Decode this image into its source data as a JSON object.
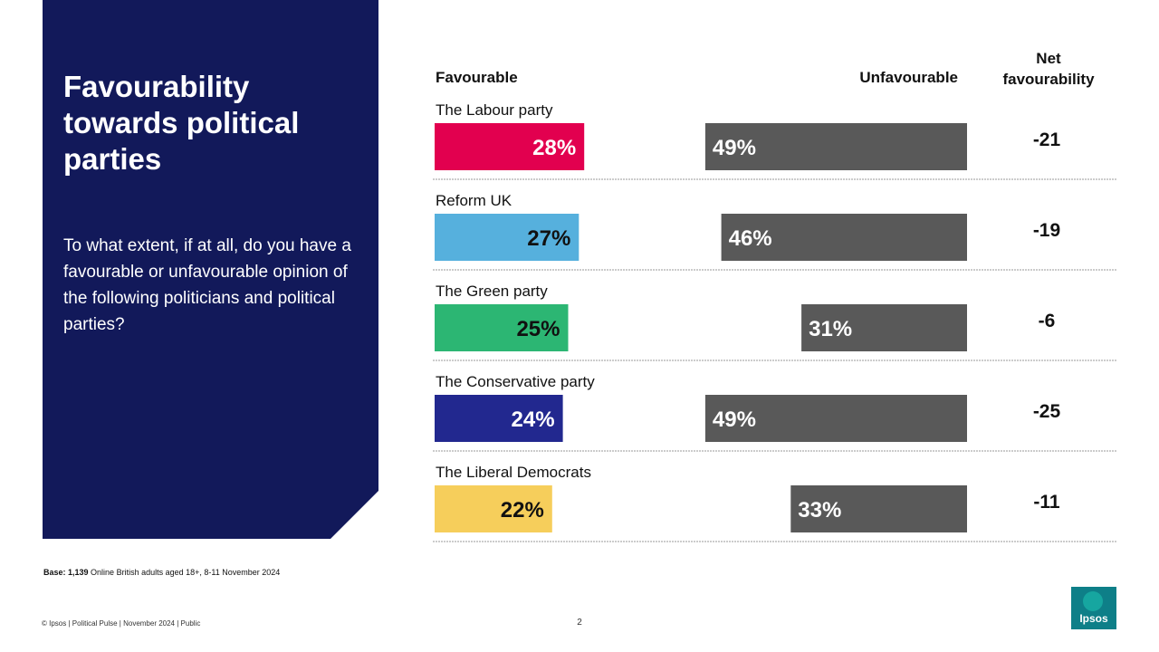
{
  "panel": {
    "title": "Favourability towards political parties",
    "question": "To what extent, if at all, do you have a favourable or unfavourable opinion of the following politicians and political parties?"
  },
  "headers": {
    "favourable": "Favourable",
    "unfavourable": "Unfavourable",
    "net_line1": "Net",
    "net_line2": "favourability"
  },
  "chart_data": {
    "type": "bar",
    "title": "Favourability towards political parties",
    "categories": [
      "The Labour party",
      "Reform UK",
      "The Green party",
      "The Conservative party",
      "The Liberal Democrats"
    ],
    "series": [
      {
        "name": "Favourable",
        "values": [
          28,
          27,
          25,
          24,
          22
        ]
      },
      {
        "name": "Unfavourable",
        "values": [
          49,
          46,
          31,
          49,
          33
        ]
      }
    ],
    "net_favourability": [
      -21,
      -19,
      -6,
      -25,
      -11
    ],
    "value_suffix": "%",
    "colors": {
      "favourable": [
        "#e2004f",
        "#56b0dd",
        "#2cb673",
        "#22288f",
        "#f6ce5b"
      ],
      "favourable_label_text": [
        "#ffffff",
        "#111111",
        "#111111",
        "#ffffff",
        "#111111"
      ],
      "unfavourable": "#595959",
      "unfavourable_label_text": "#ffffff",
      "divider": "#9a9a9a"
    }
  },
  "footer": {
    "base_label": "Base: 1,139",
    "base_text": " Online British adults aged 18+,  8-11 November 2024",
    "copyright": "© Ipsos | Political Pulse | November 2024 | Public",
    "page_number": "2",
    "logo_text": "Ipsos"
  }
}
